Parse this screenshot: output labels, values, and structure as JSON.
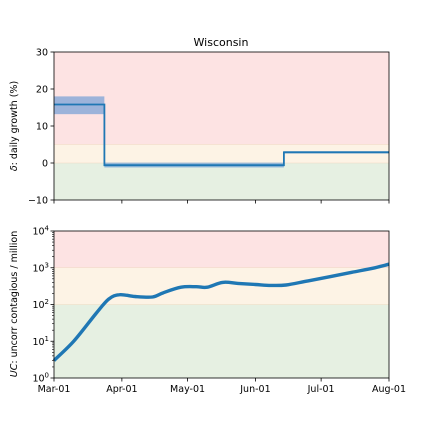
{
  "chart_data": [
    {
      "type": "line",
      "title": "Wisconsin",
      "ylabel_symbol": "δ",
      "ylabel_rest": ": daily growth (%)",
      "ylim": [
        -10,
        30
      ],
      "yticks": [
        -10,
        0,
        10,
        20,
        30
      ],
      "ytick_labels": [
        "−10",
        "0",
        "10",
        "20",
        "30"
      ],
      "zones": [
        {
          "name": "red",
          "from": 5,
          "to": 30,
          "color": "#fde3e3"
        },
        {
          "name": "orange",
          "from": 0,
          "to": 5,
          "color": "#fdf3e5"
        },
        {
          "name": "green",
          "from": -10,
          "to": 0,
          "color": "#e6f0e2"
        }
      ],
      "series": [
        {
          "x": [
            "Mar-01",
            "Mar-24",
            "Mar-24",
            "Jun-14",
            "Jun-14",
            "Aug-01"
          ],
          "y": [
            15.8,
            15.8,
            -0.6,
            -0.6,
            2.9,
            2.9
          ],
          "band_upper": [
            18.0,
            18.0,
            0.1,
            0.1,
            3.2,
            3.2
          ],
          "band_lower": [
            13.2,
            13.2,
            -1.2,
            -1.2,
            2.6,
            2.6
          ],
          "color": "#1f77b4"
        }
      ]
    },
    {
      "type": "line",
      "yscale": "log",
      "ylabel_symbol": "UC",
      "ylabel_rest": ": uncorr contagious / million",
      "ylim": [
        1,
        10000
      ],
      "ytick_exponents": [
        "0",
        "1",
        "2",
        "3",
        "4"
      ],
      "xtick_labels": [
        "Mar-01",
        "Apr-01",
        "May-01",
        "Jun-01",
        "Jul-01",
        "Aug-01"
      ],
      "zones": [
        {
          "name": "red",
          "from": 1000,
          "to": 10000,
          "color": "#fde3e3"
        },
        {
          "name": "orange",
          "from": 100,
          "to": 1000,
          "color": "#fdf3e5"
        },
        {
          "name": "green",
          "from": 1,
          "to": 100,
          "color": "#e6f0e2"
        }
      ],
      "series": [
        {
          "x": [
            "Mar-01",
            "Mar-10",
            "Mar-20",
            "Mar-26",
            "Mar-31",
            "Apr-07",
            "Apr-15",
            "Apr-20",
            "Apr-28",
            "May-05",
            "May-10",
            "May-17",
            "May-24",
            "Jun-01",
            "Jun-08",
            "Jun-15",
            "Jun-25",
            "Jul-05",
            "Jul-15",
            "Jul-25",
            "Aug-01"
          ],
          "y": [
            3,
            10,
            55,
            140,
            185,
            165,
            160,
            210,
            295,
            305,
            295,
            400,
            375,
            350,
            330,
            340,
            440,
            570,
            750,
            980,
            1250
          ],
          "color": "#1f77b4"
        }
      ]
    }
  ]
}
